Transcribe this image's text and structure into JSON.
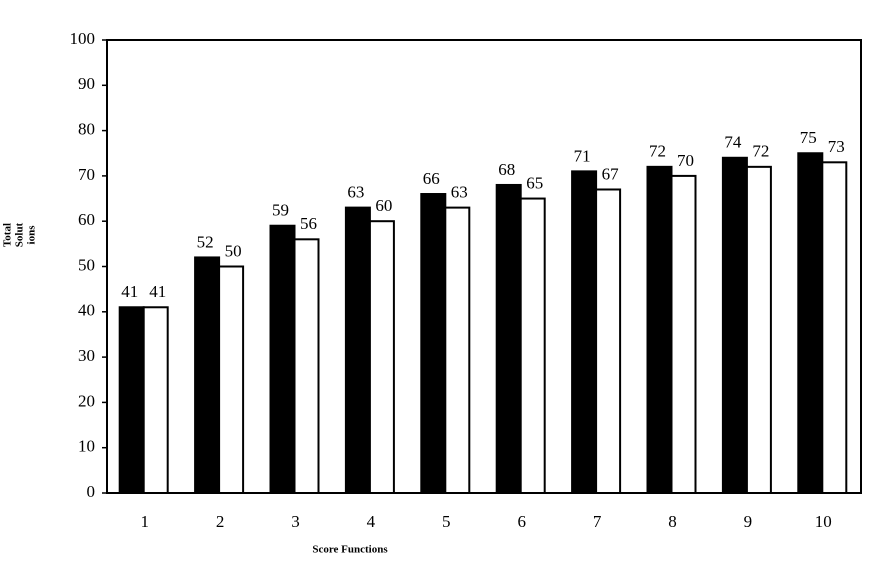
{
  "chart_data": {
    "type": "bar",
    "y_label": [
      "Total",
      "Solut",
      "ions"
    ],
    "x_label": "Score Functions",
    "categories": [
      "1",
      "2",
      "3",
      "4",
      "5",
      "6",
      "7",
      "8",
      "9",
      "10"
    ],
    "series": [
      {
        "color": "#000000",
        "values": [
          41,
          52,
          59,
          63,
          66,
          68,
          71,
          72,
          74,
          75
        ]
      },
      {
        "color": "#ffffff",
        "values": [
          41,
          50,
          56,
          60,
          63,
          65,
          67,
          70,
          72,
          73
        ]
      }
    ],
    "ylim": [
      0,
      100
    ],
    "yticks": [
      0,
      10,
      20,
      30,
      40,
      50,
      60,
      70,
      80,
      90,
      100
    ]
  }
}
